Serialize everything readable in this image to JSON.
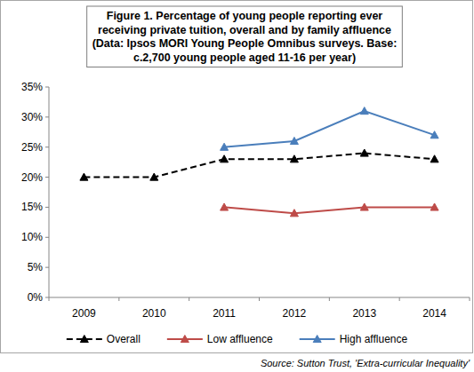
{
  "chart_data": {
    "type": "line",
    "title": "Figure 1. Percentage of young people reporting ever\nreceiving private tuition, overall and by family affluence\n(Data: Ipsos MORI Young People Omnibus surveys. Base:\nc.2,700 young people aged 11-16 per year)",
    "source": "Source: Sutton Trust, 'Extra-curricular Inequality'",
    "categories": [
      "2009",
      "2010",
      "2011",
      "2012",
      "2013",
      "2014"
    ],
    "series": [
      {
        "name": "Overall",
        "color": "#000000",
        "line_style": "dashed",
        "marker": "triangle",
        "values": [
          20,
          20,
          23,
          23,
          24,
          23
        ]
      },
      {
        "name": "Low affluence",
        "color": "#be4b48",
        "line_style": "solid",
        "marker": "triangle",
        "values": [
          null,
          null,
          15,
          14,
          15,
          15
        ]
      },
      {
        "name": "High affluence",
        "color": "#4a7ebb",
        "line_style": "solid",
        "marker": "triangle",
        "values": [
          null,
          null,
          25,
          26,
          31,
          27
        ]
      }
    ],
    "ylim": [
      0,
      35
    ],
    "yticks": [
      {
        "value": 0,
        "label": "0%"
      },
      {
        "value": 5,
        "label": "5%"
      },
      {
        "value": 10,
        "label": "10%"
      },
      {
        "value": 15,
        "label": "15%"
      },
      {
        "value": 20,
        "label": "20%"
      },
      {
        "value": 25,
        "label": "25%"
      },
      {
        "value": 30,
        "label": "30%"
      },
      {
        "value": 35,
        "label": "35%"
      }
    ],
    "grid": false,
    "legend": "bottom"
  }
}
